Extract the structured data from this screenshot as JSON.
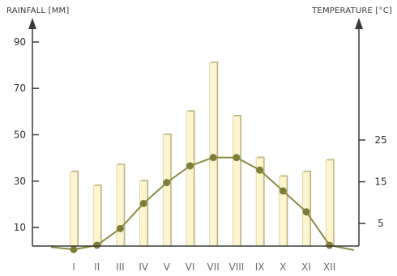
{
  "chart_data": {
    "type": "bar+line",
    "title": "",
    "categories": [
      "I",
      "II",
      "III",
      "IV",
      "V",
      "VI",
      "VII",
      "VIII",
      "IX",
      "X",
      "XI",
      "XII"
    ],
    "series": [
      {
        "name": "RAINFALL [MM]",
        "type": "bar",
        "axis": "left",
        "values": [
          34,
          28,
          37,
          30,
          50,
          60,
          81,
          58,
          40,
          32,
          34,
          39
        ]
      },
      {
        "name": "TEMPERATURE [°C]",
        "type": "line",
        "axis": "right",
        "values": [
          -1,
          0,
          4,
          10,
          15,
          19,
          21,
          21,
          18,
          13,
          8,
          0
        ]
      }
    ],
    "left_axis": {
      "label": "RAINFALL [MM]",
      "ticks": [
        10,
        30,
        50,
        70,
        90
      ]
    },
    "right_axis": {
      "label": "TEMPERATURE [°C]",
      "ticks": [
        5,
        15,
        25
      ]
    },
    "colors": {
      "bar_fill": "#fcf5cf",
      "bar_stroke": "#d9cf9c",
      "bar_shadow": "#b7ad7c",
      "line": "#8c8c45",
      "marker": "#7e7e3a",
      "axis": "#3a3a3a"
    },
    "grid": false,
    "legend": "none"
  }
}
